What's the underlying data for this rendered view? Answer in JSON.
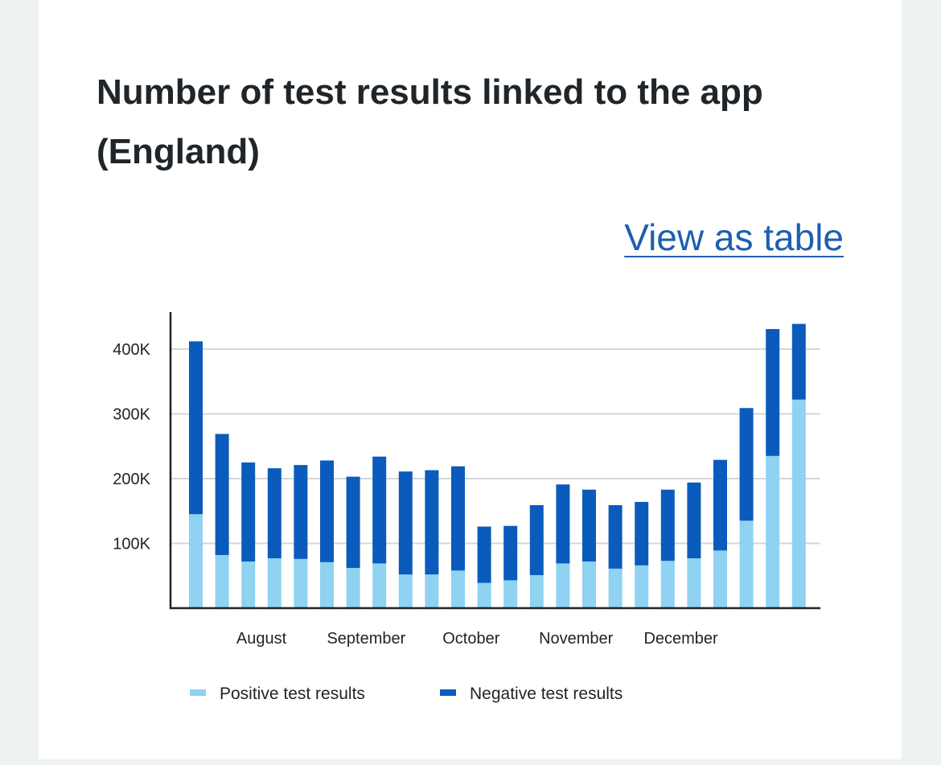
{
  "link_label": "View as table",
  "chart_data": {
    "type": "bar",
    "stacked": true,
    "title": "Number of test results linked to the app (England)",
    "xlabel": "",
    "ylabel": "",
    "ylim": [
      0,
      450000
    ],
    "yticks": [
      {
        "value": 100000,
        "label": "100K"
      },
      {
        "value": 200000,
        "label": "200K"
      },
      {
        "value": 300000,
        "label": "300K"
      },
      {
        "value": 400000,
        "label": "400K"
      }
    ],
    "month_labels": [
      {
        "label": "August",
        "after_bar": 2
      },
      {
        "label": "September",
        "after_bar": 6
      },
      {
        "label": "October",
        "after_bar": 10
      },
      {
        "label": "November",
        "after_bar": 14
      },
      {
        "label": "December",
        "after_bar": 18
      }
    ],
    "grid": true,
    "legend_position": "bottom",
    "series": [
      {
        "name": "Positive test results",
        "color": "#8fd2f1",
        "values": [
          145000,
          82000,
          72000,
          77000,
          76000,
          71000,
          62000,
          69000,
          52000,
          52000,
          58000,
          39000,
          43000,
          51000,
          69000,
          72000,
          61000,
          66000,
          73000,
          77000,
          89000,
          135000,
          235000,
          322000
        ]
      },
      {
        "name": "Negative test results",
        "color": "#0b5bbd",
        "values": [
          267000,
          187000,
          153000,
          139000,
          145000,
          157000,
          141000,
          165000,
          159000,
          161000,
          161000,
          87000,
          84000,
          108000,
          122000,
          111000,
          98000,
          98000,
          110000,
          117000,
          140000,
          174000,
          196000,
          117000
        ]
      }
    ]
  }
}
